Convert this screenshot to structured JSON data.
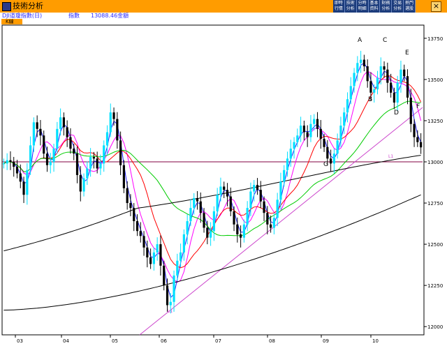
{
  "window": {
    "title": "技術分析",
    "toolbar_buttons": [
      "即時\n行情",
      "技術\n分析",
      "分時\n明細",
      "基本\n資料",
      "財務\n分析",
      "交易\n分析",
      "熱門\n選股"
    ],
    "close_label": "×"
  },
  "info": {
    "index_name": "DJI道瓊指數(日)",
    "field": "指數",
    "value": "13088.46金額"
  },
  "tab": {
    "label": "K線"
  },
  "colors": {
    "titlebar": "#ff9c00",
    "candle_up": "#00e0ff",
    "candle_down": "#000000",
    "ma_short": "#2222ff",
    "ma_mid": "#ff00ff",
    "ma_red": "#ff0000",
    "ma_green": "#00cc00",
    "ma_long": "#000000",
    "trendline": "#cc44cc",
    "hline": "#800040"
  },
  "chart_data": {
    "type": "candlestick",
    "y_ticks": [
      12000,
      12250,
      12500,
      12750,
      13000,
      13250,
      13500,
      13750
    ],
    "ylim": [
      11950,
      13830
    ],
    "x_ticks": [
      "03",
      "04",
      "05",
      "06",
      "07",
      "08",
      "09",
      "10"
    ],
    "pattern_labels": [
      "A",
      "B",
      "C",
      "D",
      "E",
      "F",
      "G"
    ],
    "horizontal_line": 13000,
    "low_marker": "L1",
    "right_marker": "L1",
    "closes": [
      12990,
      13010,
      13000,
      12970,
      12930,
      12880,
      12800,
      12950,
      13100,
      13240,
      13200,
      13160,
      13050,
      12980,
      13000,
      13080,
      13200,
      13270,
      13210,
      13150,
      13080,
      13050,
      12920,
      12820,
      12900,
      12960,
      13030,
      13020,
      12960,
      12990,
      13100,
      13180,
      13300,
      13260,
      13130,
      12980,
      12840,
      12750,
      12720,
      12640,
      12580,
      12550,
      12480,
      12420,
      12380,
      12450,
      12500,
      12370,
      12250,
      12130,
      12150,
      12310,
      12400,
      12450,
      12560,
      12640,
      12720,
      12780,
      12760,
      12690,
      12600,
      12540,
      12580,
      12700,
      12800,
      12850,
      12830,
      12790,
      12700,
      12620,
      12560,
      12540,
      12620,
      12720,
      12820,
      12860,
      12830,
      12760,
      12690,
      12620,
      12600,
      12660,
      12770,
      12880,
      12950,
      13020,
      13080,
      13120,
      13160,
      13220,
      13180,
      13150,
      13230,
      13260,
      13200,
      13140,
      13090,
      13020,
      12990,
      13050,
      13130,
      13220,
      13300,
      13380,
      13460,
      13540,
      13600,
      13620,
      13580,
      13490,
      13420,
      13440,
      13510,
      13580,
      13560,
      13480,
      13420,
      13360,
      13480,
      13560,
      13520,
      13390,
      13230,
      13150,
      13120,
      13088
    ]
  }
}
